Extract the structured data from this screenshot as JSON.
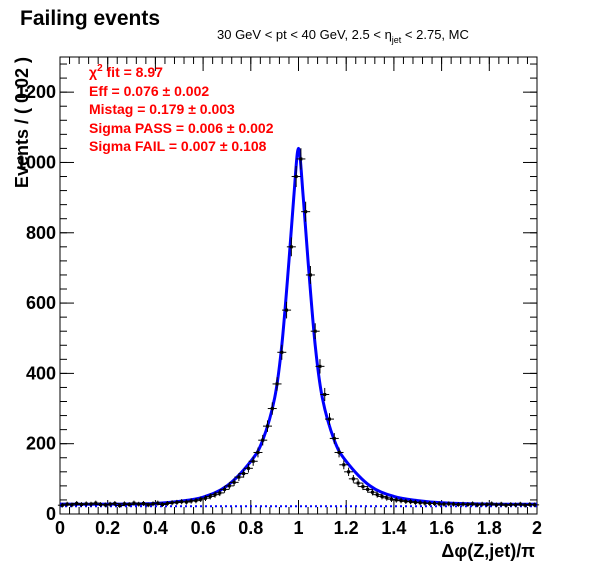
{
  "chart_data": {
    "type": "scatter",
    "title": "Failing events",
    "subtitle_parts": {
      "pre": "30 GeV < pt < 40 GeV, 2.5 < ",
      "eta": "η",
      "eta_sub": "jet",
      "post": " < 2.75, MC"
    },
    "xlabel": "Δφ(Z,jet)/π",
    "ylabel": "Events / ( 0.02 )",
    "xlim": [
      0,
      2
    ],
    "ylim": [
      0,
      1300
    ],
    "x_ticks": [
      "0",
      "0.2",
      "0.4",
      "0.6",
      "0.8",
      "1",
      "1.2",
      "1.4",
      "1.6",
      "1.8",
      "2"
    ],
    "y_ticks": [
      "0",
      "200",
      "400",
      "600",
      "800",
      "1000",
      "1200"
    ],
    "annotations": [
      {
        "chi": "χ",
        "sup": "2",
        "rest": " fit = 8.97"
      },
      {
        "text": "Eff = 0.076 ± 0.002"
      },
      {
        "text": "Mistag = 0.179 ± 0.003"
      },
      {
        "text": "Sigma PASS = 0.006 ± 0.002"
      },
      {
        "text": "Sigma FAIL = 0.007 ± 0.108"
      }
    ],
    "background_level": 22,
    "fit_curve": [
      [
        0,
        28
      ],
      [
        0.2,
        28
      ],
      [
        0.4,
        30
      ],
      [
        0.5,
        36
      ],
      [
        0.6,
        48
      ],
      [
        0.7,
        80
      ],
      [
        0.8,
        150
      ],
      [
        0.85,
        210
      ],
      [
        0.9,
        330
      ],
      [
        0.93,
        480
      ],
      [
        0.96,
        720
      ],
      [
        0.98,
        900
      ],
      [
        1.0,
        1040
      ],
      [
        1.02,
        900
      ],
      [
        1.04,
        720
      ],
      [
        1.07,
        480
      ],
      [
        1.1,
        330
      ],
      [
        1.15,
        210
      ],
      [
        1.2,
        150
      ],
      [
        1.3,
        80
      ],
      [
        1.4,
        50
      ],
      [
        1.5,
        38
      ],
      [
        1.6,
        32
      ],
      [
        1.8,
        28
      ],
      [
        2.0,
        28
      ]
    ],
    "series": [
      {
        "x": [
          0.01,
          0.03,
          0.05,
          0.07,
          0.09,
          0.11,
          0.13,
          0.15,
          0.17,
          0.19,
          0.21,
          0.23,
          0.25,
          0.27,
          0.29,
          0.31,
          0.33,
          0.35,
          0.37,
          0.39,
          0.41,
          0.43,
          0.45,
          0.47,
          0.49,
          0.51,
          0.53,
          0.55,
          0.57,
          0.59,
          0.61,
          0.63,
          0.65,
          0.67,
          0.69,
          0.71,
          0.73,
          0.75,
          0.77,
          0.79,
          0.81,
          0.83,
          0.85,
          0.87,
          0.89,
          0.91,
          0.93,
          0.95,
          0.97,
          0.99,
          1.01,
          1.03,
          1.05,
          1.07,
          1.09,
          1.11,
          1.13,
          1.15,
          1.17,
          1.19,
          1.21,
          1.23,
          1.25,
          1.27,
          1.29,
          1.31,
          1.33,
          1.35,
          1.37,
          1.39,
          1.41,
          1.43,
          1.45,
          1.47,
          1.49,
          1.51,
          1.53,
          1.55,
          1.57,
          1.59,
          1.61,
          1.63,
          1.65,
          1.67,
          1.69,
          1.71,
          1.73,
          1.75,
          1.77,
          1.79,
          1.81,
          1.83,
          1.85,
          1.87,
          1.89,
          1.91,
          1.93,
          1.95,
          1.97,
          1.99
        ],
        "y": [
          25,
          28,
          26,
          30,
          27,
          29,
          28,
          31,
          27,
          26,
          28,
          30,
          24,
          29,
          27,
          31,
          28,
          30,
          26,
          29,
          31,
          27,
          30,
          32,
          33,
          35,
          34,
          37,
          38,
          42,
          45,
          50,
          55,
          60,
          70,
          80,
          90,
          105,
          115,
          130,
          150,
          175,
          210,
          250,
          300,
          370,
          460,
          580,
          760,
          960,
          1010,
          860,
          680,
          520,
          420,
          340,
          270,
          215,
          175,
          140,
          120,
          100,
          88,
          78,
          70,
          62,
          55,
          50,
          46,
          42,
          40,
          38,
          36,
          35,
          33,
          32,
          31,
          30,
          30,
          29,
          28,
          29,
          28,
          27,
          28,
          27,
          29,
          26,
          28,
          27,
          29,
          26,
          28,
          25,
          27,
          26,
          28,
          25,
          27,
          26
        ]
      }
    ]
  }
}
